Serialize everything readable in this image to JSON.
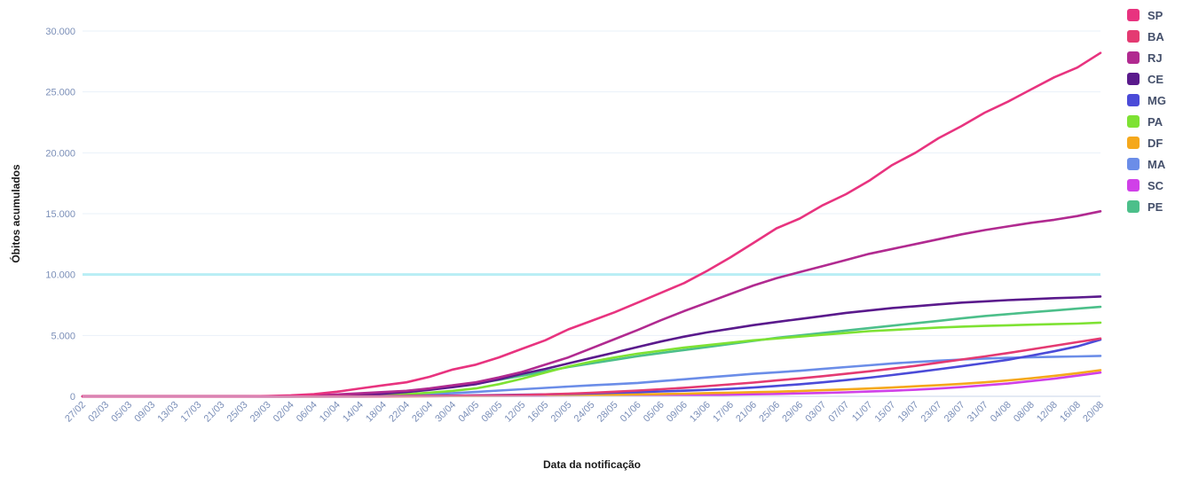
{
  "chart_data": {
    "type": "line",
    "xlabel": "Data da notificação",
    "ylabel": "Óbitos acumulados",
    "ylim": [
      0,
      30000
    ],
    "yticks": [
      "0",
      "5.000",
      "10.000",
      "15.000",
      "20.000",
      "25.000",
      "30.000"
    ],
    "grid": true,
    "legend_position": "top-right",
    "x_tick_labels": [
      "27/02",
      "02/03",
      "05/03",
      "09/03",
      "13/03",
      "17/03",
      "21/03",
      "25/03",
      "29/03",
      "02/04",
      "06/04",
      "10/04",
      "14/04",
      "18/04",
      "22/04",
      "26/04",
      "30/04",
      "04/05",
      "08/05",
      "12/05",
      "16/05",
      "20/05",
      "24/05",
      "28/05",
      "01/06",
      "05/06",
      "09/06",
      "13/06",
      "17/06",
      "21/06",
      "25/06",
      "29/06",
      "03/07",
      "07/07",
      "11/07",
      "15/07",
      "19/07",
      "23/07",
      "28/07",
      "31/07",
      "04/08",
      "08/08",
      "12/08",
      "16/08",
      "20/08"
    ],
    "reference_line": {
      "y": 10000,
      "color": "#b8eef5"
    },
    "series": [
      {
        "name": "SP",
        "color": "#e8337f",
        "values": [
          0,
          0,
          0,
          0,
          0,
          0,
          0,
          0,
          20,
          80,
          180,
          380,
          650,
          900,
          1150,
          1600,
          2200,
          2600,
          3200,
          3900,
          4600,
          5500,
          6200,
          6900,
          7700,
          8500,
          9300,
          10300,
          11400,
          12600,
          13800,
          14600,
          15700,
          16600,
          17700,
          19000,
          20000,
          21200,
          22200,
          23300,
          24200,
          25200,
          26200,
          27000,
          28200
        ]
      },
      {
        "name": "BA",
        "color": "#e43a72",
        "values": [
          0,
          0,
          0,
          0,
          0,
          0,
          0,
          0,
          0,
          0,
          0,
          0,
          5,
          10,
          20,
          30,
          45,
          60,
          80,
          110,
          160,
          220,
          290,
          380,
          470,
          580,
          700,
          840,
          980,
          1130,
          1300,
          1470,
          1650,
          1850,
          2050,
          2270,
          2500,
          2760,
          3020,
          3280,
          3550,
          3850,
          4150,
          4450,
          4750
        ]
      },
      {
        "name": "RJ",
        "color": "#b12a90",
        "values": [
          0,
          0,
          0,
          0,
          0,
          0,
          0,
          0,
          10,
          30,
          80,
          150,
          250,
          350,
          450,
          650,
          900,
          1150,
          1550,
          2000,
          2600,
          3200,
          3950,
          4700,
          5450,
          6250,
          7000,
          7700,
          8400,
          9100,
          9700,
          10200,
          10700,
          11200,
          11700,
          12100,
          12500,
          12900,
          13300,
          13650,
          13950,
          14250,
          14500,
          14800,
          15200
        ]
      },
      {
        "name": "CE",
        "color": "#5a1a8c",
        "values": [
          0,
          0,
          0,
          0,
          0,
          0,
          0,
          0,
          0,
          10,
          30,
          60,
          120,
          220,
          350,
          530,
          750,
          1000,
          1400,
          1850,
          2250,
          2700,
          3150,
          3600,
          4050,
          4500,
          4900,
          5250,
          5550,
          5850,
          6100,
          6350,
          6600,
          6850,
          7050,
          7250,
          7400,
          7550,
          7700,
          7800,
          7900,
          7980,
          8060,
          8120,
          8200
        ]
      },
      {
        "name": "MG",
        "color": "#4b4bd8",
        "values": [
          0,
          0,
          0,
          0,
          0,
          0,
          0,
          0,
          0,
          0,
          0,
          5,
          10,
          20,
          30,
          45,
          60,
          80,
          100,
          130,
          160,
          200,
          240,
          290,
          340,
          400,
          460,
          530,
          610,
          720,
          850,
          990,
          1150,
          1330,
          1530,
          1750,
          1980,
          2220,
          2470,
          2730,
          3000,
          3340,
          3700,
          4100,
          4650
        ]
      },
      {
        "name": "PA",
        "color": "#7ee233",
        "values": [
          0,
          0,
          0,
          0,
          0,
          0,
          0,
          0,
          0,
          0,
          5,
          20,
          50,
          100,
          180,
          300,
          450,
          650,
          1000,
          1450,
          1950,
          2450,
          2850,
          3200,
          3500,
          3750,
          4000,
          4200,
          4400,
          4600,
          4750,
          4900,
          5050,
          5200,
          5350,
          5450,
          5550,
          5650,
          5720,
          5780,
          5830,
          5880,
          5930,
          5970,
          6050
        ]
      },
      {
        "name": "DF",
        "color": "#f5a81c",
        "values": [
          0,
          0,
          0,
          0,
          0,
          0,
          0,
          0,
          0,
          0,
          0,
          0,
          0,
          5,
          10,
          15,
          20,
          30,
          40,
          50,
          60,
          80,
          100,
          130,
          160,
          190,
          220,
          260,
          300,
          340,
          380,
          440,
          500,
          570,
          640,
          720,
          820,
          920,
          1030,
          1150,
          1300,
          1480,
          1680,
          1900,
          2150
        ]
      },
      {
        "name": "MA",
        "color": "#6b8de8",
        "values": [
          0,
          0,
          0,
          0,
          0,
          0,
          0,
          0,
          0,
          0,
          0,
          5,
          20,
          50,
          100,
          170,
          260,
          360,
          470,
          580,
          690,
          800,
          900,
          1000,
          1100,
          1250,
          1400,
          1550,
          1700,
          1850,
          1970,
          2100,
          2250,
          2400,
          2550,
          2700,
          2820,
          2930,
          3020,
          3100,
          3160,
          3210,
          3250,
          3280,
          3320
        ]
      },
      {
        "name": "SC",
        "color": "#d040e8",
        "values": [
          0,
          0,
          0,
          0,
          0,
          0,
          0,
          0,
          0,
          0,
          0,
          0,
          0,
          5,
          10,
          15,
          20,
          25,
          30,
          35,
          40,
          50,
          60,
          70,
          80,
          90,
          100,
          120,
          140,
          170,
          200,
          240,
          280,
          330,
          390,
          460,
          540,
          640,
          760,
          900,
          1050,
          1250,
          1450,
          1700,
          1950
        ]
      },
      {
        "name": "PE",
        "color": "#4cbf8a",
        "values": [
          0,
          0,
          0,
          0,
          0,
          0,
          0,
          0,
          0,
          10,
          40,
          100,
          180,
          280,
          420,
          600,
          800,
          1050,
          1350,
          1700,
          2050,
          2400,
          2700,
          3000,
          3300,
          3550,
          3800,
          4050,
          4300,
          4550,
          4800,
          5000,
          5200,
          5400,
          5600,
          5800,
          6000,
          6200,
          6400,
          6600,
          6750,
          6900,
          7050,
          7200,
          7350
        ]
      }
    ]
  }
}
